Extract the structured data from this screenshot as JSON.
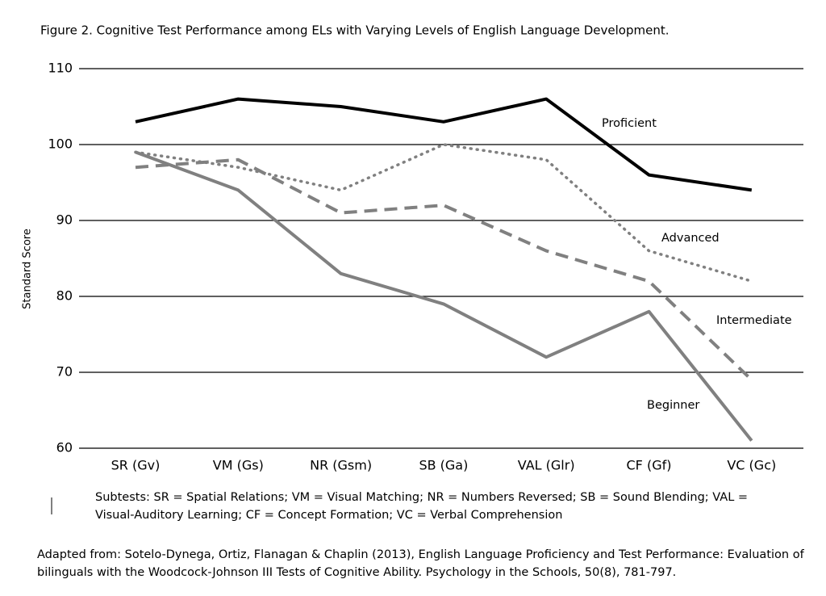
{
  "chart_data": {
    "type": "line",
    "title": "Figure 2. Cognitive Test Performance among ELs with Varying Levels of English Language Development.",
    "y_label": "Standard Score",
    "categories": [
      "SR (Gv)",
      "VM (Gs)",
      "NR (Gsm)",
      "SB (Ga)",
      "VAL (Glr)",
      "CF (Gf)",
      "VC (Gc)"
    ],
    "series": [
      {
        "name": "Proficient",
        "color": "#000000",
        "style": "solid",
        "values": [
          103,
          106,
          105,
          103,
          106,
          96,
          94
        ]
      },
      {
        "name": "Advanced",
        "color": "#808080",
        "style": "dotted",
        "values": [
          99,
          97,
          94,
          100,
          98,
          86,
          82
        ]
      },
      {
        "name": "Intermediate",
        "color": "#808080",
        "style": "dashed",
        "values": [
          97,
          98,
          91,
          92,
          86,
          82,
          69
        ]
      },
      {
        "name": "Beginner",
        "color": "#808080",
        "style": "solid",
        "values": [
          99,
          94,
          83,
          79,
          72,
          78,
          61
        ]
      }
    ],
    "ylim": [
      60,
      110
    ],
    "yticks": [
      60,
      70,
      80,
      90,
      100,
      110
    ],
    "grid": true,
    "note": "Subtests: SR = Spatial Relations; VM = Visual Matching; NR = Numbers Reversed; SB = Sound Blending; VAL = Visual-Auditory Learning; CF = Concept Formation; VC = Verbal Comprehension",
    "source": "Adapted from: Sotelo-Dynega, Ortiz, Flanagan & Chaplin (2013), English Language Proficiency and Test Performance: Evaluation of bilinguals with the Woodcock-Johnson III Tests of Cognitive Ability. Psychology in the Schools, 50(8), 781-797."
  }
}
